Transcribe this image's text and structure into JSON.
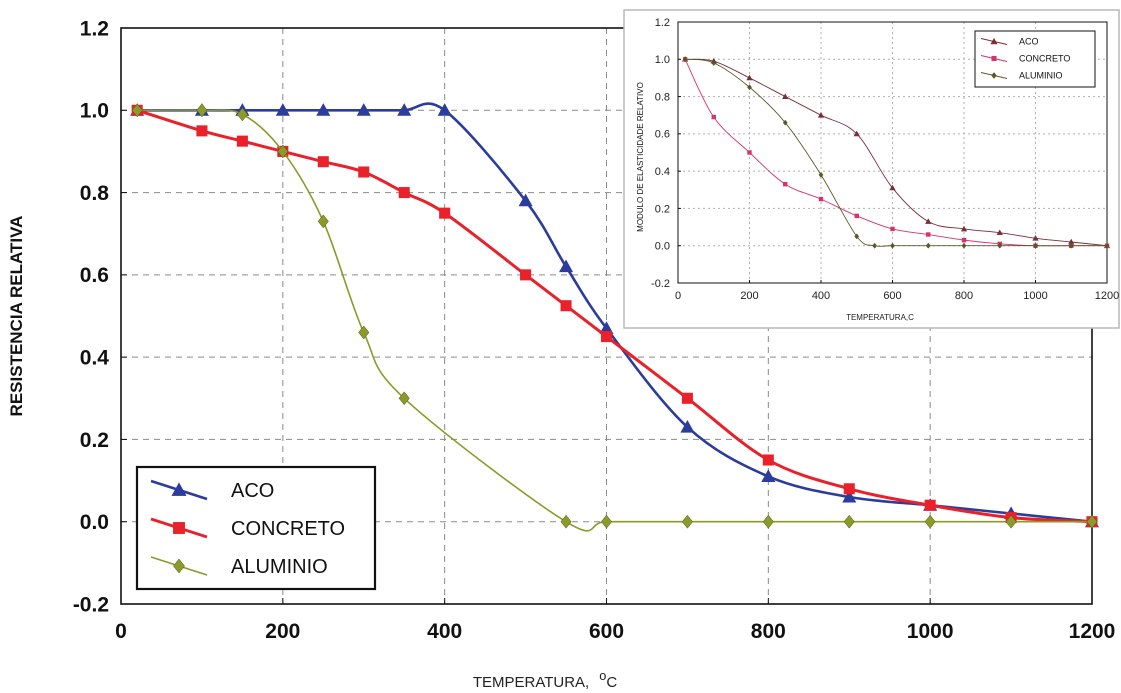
{
  "chart_data": [
    {
      "type": "line",
      "title": "",
      "xlabel": "TEMPERATURA,",
      "xlabel_unit": "oC",
      "ylabel": "RESISTENCIA RELATIVA",
      "xlim": [
        0,
        1200
      ],
      "ylim": [
        -0.2,
        1.2
      ],
      "xticks": [
        0,
        200,
        400,
        600,
        800,
        1000,
        1200
      ],
      "yticks": [
        -0.2,
        0.0,
        0.2,
        0.4,
        0.6,
        0.8,
        1.0,
        1.2
      ],
      "ytick_labels": [
        "-0.2",
        "0.0",
        "0.2",
        "0.4",
        "0.6",
        "0.8",
        "1.0",
        "1.2"
      ],
      "grid": true,
      "legend_position": "bottom-left",
      "series": [
        {
          "name": "ACO",
          "color": "#2b3c9c",
          "marker": "triangle",
          "x": [
            20,
            100,
            150,
            200,
            250,
            300,
            350,
            400,
            500,
            550,
            600,
            700,
            800,
            900,
            1000,
            1100,
            1200
          ],
          "y": [
            1.0,
            1.0,
            1.0,
            1.0,
            1.0,
            1.0,
            1.0,
            1.0,
            0.78,
            0.62,
            0.47,
            0.23,
            0.11,
            0.06,
            0.04,
            0.02,
            0.0
          ]
        },
        {
          "name": "CONCRETO",
          "color": "#e8212a",
          "marker": "square",
          "x": [
            20,
            100,
            150,
            200,
            250,
            300,
            350,
            400,
            500,
            550,
            600,
            700,
            800,
            900,
            1000,
            1100,
            1200
          ],
          "y": [
            1.0,
            0.95,
            0.925,
            0.9,
            0.875,
            0.85,
            0.8,
            0.75,
            0.6,
            0.525,
            0.45,
            0.3,
            0.15,
            0.08,
            0.04,
            0.01,
            0.0
          ]
        },
        {
          "name": "ALUMINIO",
          "color": "#8c9a2a",
          "marker": "diamond",
          "x": [
            20,
            100,
            150,
            200,
            250,
            300,
            350,
            550,
            600,
            700,
            800,
            900,
            1000,
            1100,
            1200
          ],
          "y": [
            1.0,
            1.0,
            0.99,
            0.9,
            0.73,
            0.46,
            0.3,
            0.0,
            0.0,
            0.0,
            0.0,
            0.0,
            0.0,
            0.0,
            0.0
          ]
        }
      ]
    },
    {
      "type": "line",
      "title": "",
      "xlabel": "TEMPERATURA,C",
      "ylabel": "MODULO DE ELASTICIDADE RELATIVO",
      "xlim": [
        0,
        1200
      ],
      "ylim": [
        -0.2,
        1.2
      ],
      "xticks": [
        0,
        200,
        400,
        600,
        800,
        1000,
        1200
      ],
      "yticks": [
        -0.2,
        0.0,
        0.2,
        0.4,
        0.6,
        0.8,
        1.0,
        1.2
      ],
      "ytick_labels": [
        "-0.2",
        "0.0",
        "0.2",
        "0.4",
        "0.6",
        "0.8",
        "1.0",
        "1.2"
      ],
      "grid": true,
      "legend_position": "top-right",
      "series": [
        {
          "name": "ACO",
          "color": "#7a2d3a",
          "marker": "triangle",
          "x": [
            20,
            100,
            200,
            300,
            400,
            500,
            600,
            700,
            800,
            900,
            1000,
            1100,
            1200
          ],
          "y": [
            1.0,
            0.99,
            0.9,
            0.8,
            0.7,
            0.6,
            0.31,
            0.13,
            0.09,
            0.07,
            0.04,
            0.02,
            0.0
          ]
        },
        {
          "name": "CONCRETO",
          "color": "#d6336c",
          "marker": "square",
          "x": [
            20,
            100,
            200,
            300,
            400,
            500,
            600,
            700,
            800,
            900,
            1000,
            1100,
            1200
          ],
          "y": [
            1.0,
            0.69,
            0.5,
            0.33,
            0.25,
            0.16,
            0.09,
            0.06,
            0.03,
            0.01,
            0.0,
            0.0,
            0.0
          ]
        },
        {
          "name": "ALUMINIO",
          "color": "#5a5a2a",
          "marker": "diamond",
          "x": [
            20,
            100,
            200,
            300,
            400,
            500,
            550,
            600,
            700,
            800,
            900,
            1000,
            1100,
            1200
          ],
          "y": [
            1.0,
            0.98,
            0.85,
            0.66,
            0.38,
            0.05,
            0.0,
            0.0,
            0.0,
            0.0,
            0.0,
            0.0,
            0.0,
            0.0
          ]
        }
      ]
    }
  ]
}
